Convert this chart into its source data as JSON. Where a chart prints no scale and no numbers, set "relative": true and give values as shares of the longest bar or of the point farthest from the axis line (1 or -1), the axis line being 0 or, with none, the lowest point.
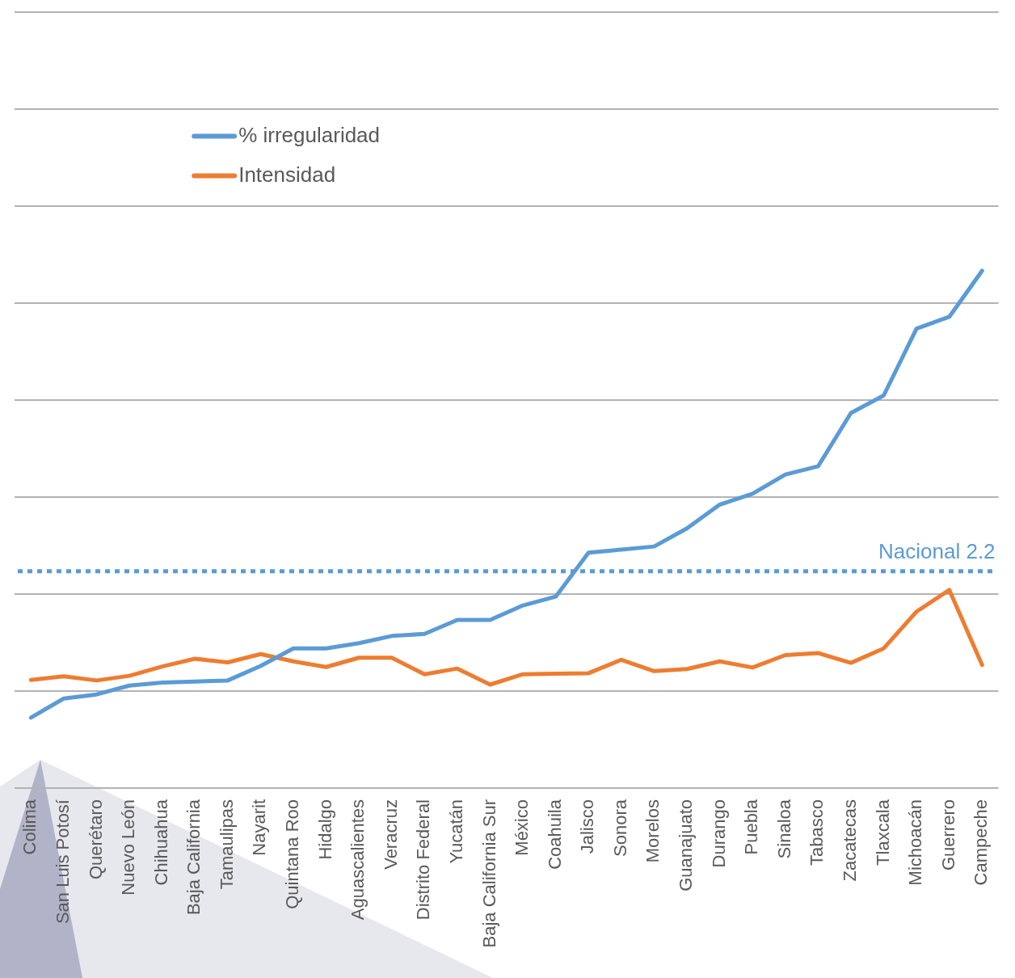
{
  "chart_data": {
    "type": "line",
    "relative": true,
    "categories": [
      "Colima",
      "San Luis Potosí",
      "Querétaro",
      "Nuevo León",
      "Chihuahua",
      "Baja California",
      "Tamaulipas",
      "Nayarit",
      "Quintana Roo",
      "Hidalgo",
      "Aguascalientes",
      "Veracruz",
      "Distrito Federal",
      "Yucatán",
      "Baja California Sur",
      "México",
      "Coahuila",
      "Jalisco",
      "Sonora",
      "Morelos",
      "Guanajuato",
      "Durango",
      "Puebla",
      "Sinaloa",
      "Tabasco",
      "Zacatecas",
      "Tlaxcala",
      "Michoacán",
      "Guerrero",
      "Campeche"
    ],
    "series": [
      {
        "name": "% irregularidad",
        "color": "#5b9bd5",
        "values": [
          0.136,
          0.173,
          0.181,
          0.198,
          0.204,
          0.206,
          0.208,
          0.236,
          0.27,
          0.27,
          0.28,
          0.294,
          0.298,
          0.325,
          0.325,
          0.353,
          0.37,
          0.455,
          0.461,
          0.467,
          0.502,
          0.548,
          0.569,
          0.606,
          0.622,
          0.725,
          0.759,
          0.888,
          0.911,
          1
        ]
      },
      {
        "name": "Intensidad",
        "color": "#ed7d31",
        "values": [
          0.209,
          0.216,
          0.208,
          0.217,
          0.235,
          0.25,
          0.243,
          0.259,
          0.245,
          0.234,
          0.252,
          0.252,
          0.22,
          0.231,
          0.2,
          0.22,
          0.221,
          0.222,
          0.248,
          0.226,
          0.23,
          0.245,
          0.233,
          0.257,
          0.261,
          0.242,
          0.27,
          0.341,
          0.383,
          0.238
        ]
      }
    ],
    "ref_lines": [
      {
        "axis": "y",
        "value": 0.419,
        "label": "Nacional 2.2",
        "color": "#5b9bd5",
        "line_style": "dotted"
      }
    ],
    "grid": "y",
    "legend": "top left",
    "marker": "none"
  }
}
